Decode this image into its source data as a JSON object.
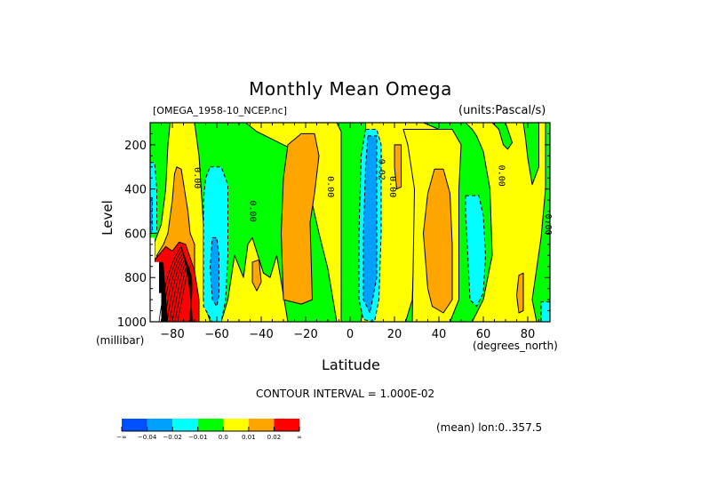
{
  "chart_data": {
    "type": "heatmap",
    "subtype": "filled-contour",
    "title": "Monthly Mean Omega",
    "subtitle_left": "[OMEGA_1958-10_NCEP.nc]",
    "subtitle_right": "(units:Pascal/s)",
    "xlabel": "Latitude",
    "xunits": "(degrees_north)",
    "ylabel": "Level",
    "yunits": "(millibar)",
    "xlim": [
      -90,
      90
    ],
    "ylim": [
      1000,
      100
    ],
    "x_ticks": [
      -80,
      -60,
      -40,
      -20,
      0,
      20,
      40,
      60,
      80
    ],
    "x_tick_labels": [
      "-80",
      "-60",
      "-40",
      "-20",
      "0",
      "20",
      "40",
      "60",
      "80"
    ],
    "y_ticks": [
      200,
      400,
      600,
      800,
      1000
    ],
    "y_tick_labels": [
      "200",
      "400",
      "600",
      "800",
      "1000"
    ],
    "contour_interval_text": "CONTOUR INTERVAL = 1.000E-02",
    "mean_info": "(mean) lon:0..357.5",
    "colorbar": {
      "bins": [
        {
          "color": "#0050ff",
          "range": "-inf to -0.04"
        },
        {
          "color": "#00a0ff",
          "range": "-0.04 to -0.02"
        },
        {
          "color": "#00ffff",
          "range": "-0.02 to -0.01"
        },
        {
          "color": "#00ff00",
          "range": "-0.01 to 0.0"
        },
        {
          "color": "#ffff00",
          "range": "0.0 to 0.01"
        },
        {
          "color": "#ffa500",
          "range": "0.01 to 0.02"
        },
        {
          "color": "#ff0000",
          "range": "0.02 to inf"
        }
      ],
      "labels": [
        "-∞",
        "-0.04",
        "-0.02",
        "-0.01",
        "0.0",
        "0.01",
        "0.02",
        "∞"
      ]
    },
    "contour_labels": [
      {
        "text": "0.00",
        "lat": -70,
        "level": 350
      },
      {
        "text": "0.00",
        "lat": -45,
        "level": 500
      },
      {
        "text": "0.00",
        "lat": -10,
        "level": 390
      },
      {
        "text": "-0.02",
        "lat": 13,
        "level": 300
      },
      {
        "text": "0.00",
        "lat": 18,
        "level": 390
      },
      {
        "text": "0.00",
        "lat": 67,
        "level": 340
      },
      {
        "text": "0.00",
        "lat": 88,
        "level": 560
      }
    ],
    "regions": [
      {
        "name": "background-green",
        "value_bin": 3,
        "pts": [
          [
            -90,
            100
          ],
          [
            90,
            100
          ],
          [
            90,
            1000
          ],
          [
            -90,
            1000
          ]
        ]
      },
      {
        "name": "yellow-sh-polar",
        "value_bin": 4,
        "pts": [
          [
            -81,
            100
          ],
          [
            -70,
            100
          ],
          [
            -68,
            250
          ],
          [
            -66,
            560
          ],
          [
            -66,
            900
          ],
          [
            -63,
            1000
          ],
          [
            -88,
            1000
          ],
          [
            -88,
            640
          ],
          [
            -85,
            560
          ],
          [
            -83,
            400
          ],
          [
            -82,
            200
          ]
        ]
      },
      {
        "name": "yellow-sh-mid",
        "value_bin": 4,
        "pts": [
          [
            -47,
            100
          ],
          [
            -6,
            100
          ],
          [
            -4,
            140
          ],
          [
            -4,
            1000
          ],
          [
            -58,
            1000
          ],
          [
            -55,
            900
          ],
          [
            -52,
            700
          ],
          [
            -48,
            800
          ],
          [
            -46,
            650
          ],
          [
            -44,
            620
          ],
          [
            -39,
            780
          ],
          [
            -36,
            800
          ],
          [
            -33,
            700
          ],
          [
            -28,
            1000
          ],
          [
            -6,
            1000
          ],
          [
            -10,
            760
          ],
          [
            -14,
            600
          ],
          [
            -18,
            420
          ],
          [
            -24,
            230
          ],
          [
            -34,
            180
          ],
          [
            -42,
            140
          ]
        ]
      },
      {
        "name": "yellow-eq",
        "value_bin": 4,
        "pts": [
          [
            7,
            100
          ],
          [
            33,
            100
          ],
          [
            40,
            130
          ],
          [
            33,
            180
          ],
          [
            30,
            350
          ],
          [
            28,
            900
          ],
          [
            25,
            1000
          ],
          [
            5,
            1000
          ],
          [
            6,
            880
          ],
          [
            8,
            600
          ],
          [
            7,
            300
          ]
        ]
      },
      {
        "name": "yellow-nh",
        "value_bin": 4,
        "pts": [
          [
            52,
            100
          ],
          [
            88,
            100
          ],
          [
            88,
            400
          ],
          [
            86,
            620
          ],
          [
            82,
            900
          ],
          [
            84,
            1000
          ],
          [
            55,
            1000
          ],
          [
            60,
            900
          ],
          [
            64,
            700
          ],
          [
            63,
            400
          ],
          [
            60,
            230
          ],
          [
            57,
            160
          ],
          [
            55,
            130
          ]
        ]
      },
      {
        "name": "yellow-nh-mid",
        "value_bin": 4,
        "pts": [
          [
            24,
            130
          ],
          [
            46,
            130
          ],
          [
            50,
            200
          ],
          [
            49,
            400
          ],
          [
            49,
            900
          ],
          [
            45,
            1000
          ],
          [
            28,
            1000
          ],
          [
            29,
            400
          ],
          [
            26,
            200
          ]
        ]
      },
      {
        "name": "green-nh-arm",
        "value_bin": 3,
        "pts": [
          [
            64,
            100
          ],
          [
            70,
            100
          ],
          [
            73,
            190
          ],
          [
            71,
            220
          ],
          [
            69,
            200
          ],
          [
            67,
            130
          ]
        ]
      },
      {
        "name": "green-nh-arm2",
        "value_bin": 3,
        "pts": [
          [
            78,
            100
          ],
          [
            85,
            100
          ],
          [
            85,
            300
          ],
          [
            82,
            380
          ],
          [
            80,
            260
          ],
          [
            79,
            170
          ]
        ]
      },
      {
        "name": "orange-sh-polar",
        "value_bin": 5,
        "pts": [
          [
            -78,
            300
          ],
          [
            -76,
            310
          ],
          [
            -73,
            500
          ],
          [
            -72,
            600
          ],
          [
            -70,
            650
          ],
          [
            -70,
            800
          ],
          [
            -72,
            1000
          ],
          [
            -86,
            1000
          ],
          [
            -87,
            700
          ],
          [
            -84,
            650
          ],
          [
            -82,
            600
          ],
          [
            -80,
            450
          ],
          [
            -79,
            330
          ]
        ]
      },
      {
        "name": "orange-sh-mid",
        "value_bin": 5,
        "pts": [
          [
            -22,
            150
          ],
          [
            -16,
            150
          ],
          [
            -14,
            250
          ],
          [
            -16,
            420
          ],
          [
            -18,
            550
          ],
          [
            -17,
            900
          ],
          [
            -22,
            920
          ],
          [
            -30,
            900
          ],
          [
            -31,
            600
          ],
          [
            -30,
            350
          ],
          [
            -28,
            200
          ]
        ]
      },
      {
        "name": "orange-sh-small",
        "value_bin": 5,
        "pts": [
          [
            -44,
            730
          ],
          [
            -41,
            720
          ],
          [
            -40,
            820
          ],
          [
            -42,
            860
          ],
          [
            -44,
            820
          ]
        ]
      },
      {
        "name": "orange-eq-small",
        "value_bin": 5,
        "pts": [
          [
            20,
            200
          ],
          [
            23,
            200
          ],
          [
            23,
            390
          ],
          [
            21,
            400
          ],
          [
            20,
            300
          ]
        ]
      },
      {
        "name": "orange-nh-mid",
        "value_bin": 5,
        "pts": [
          [
            38,
            310
          ],
          [
            42,
            310
          ],
          [
            45,
            420
          ],
          [
            46,
            650
          ],
          [
            46,
            900
          ],
          [
            42,
            960
          ],
          [
            37,
            930
          ],
          [
            35,
            850
          ],
          [
            33,
            600
          ],
          [
            35,
            420
          ]
        ]
      },
      {
        "name": "orange-nh-small",
        "value_bin": 5,
        "pts": [
          [
            76,
            790
          ],
          [
            78,
            780
          ],
          [
            78,
            950
          ],
          [
            76,
            960
          ],
          [
            75,
            880
          ]
        ]
      },
      {
        "name": "red-sh-polar",
        "value_bin": 6,
        "pts": [
          [
            -77,
            640
          ],
          [
            -74,
            650
          ],
          [
            -70,
            770
          ],
          [
            -68,
            900
          ],
          [
            -68,
            1000
          ],
          [
            -82,
            1000
          ],
          [
            -86,
            940
          ],
          [
            -88,
            720
          ],
          [
            -83,
            660
          ],
          [
            -80,
            680
          ]
        ]
      },
      {
        "name": "cyan-sh",
        "value_bin": 2,
        "pts": [
          [
            -63,
            300
          ],
          [
            -58,
            300
          ],
          [
            -55,
            380
          ],
          [
            -55,
            700
          ],
          [
            -56,
            900
          ],
          [
            -58,
            1000
          ],
          [
            -62,
            1000
          ],
          [
            -66,
            930
          ],
          [
            -66,
            700
          ],
          [
            -66,
            450
          ],
          [
            -65,
            350
          ]
        ]
      },
      {
        "name": "blue-sh",
        "value_bin": 1,
        "pts": [
          [
            -62,
            620
          ],
          [
            -60,
            620
          ],
          [
            -59,
            700
          ],
          [
            -59,
            880
          ],
          [
            -60,
            930
          ],
          [
            -62,
            900
          ],
          [
            -63,
            750
          ]
        ]
      },
      {
        "name": "cyan-sh-edge",
        "value_bin": 2,
        "pts": [
          [
            -90,
            280
          ],
          [
            -88,
            280
          ],
          [
            -87,
            400
          ],
          [
            -87,
            600
          ],
          [
            -90,
            600
          ]
        ]
      },
      {
        "name": "blue-sh-edge",
        "value_bin": 1,
        "pts": [
          [
            -90,
            440
          ],
          [
            -89,
            440
          ],
          [
            -89,
            600
          ],
          [
            -90,
            600
          ]
        ]
      },
      {
        "name": "cyan-eq",
        "value_bin": 2,
        "pts": [
          [
            7,
            130
          ],
          [
            12,
            130
          ],
          [
            14,
            200
          ],
          [
            14,
            600
          ],
          [
            13,
            900
          ],
          [
            11,
            1000
          ],
          [
            6,
            990
          ],
          [
            4,
            900
          ],
          [
            4,
            600
          ],
          [
            5,
            250
          ]
        ]
      },
      {
        "name": "blue-eq",
        "value_bin": 1,
        "pts": [
          [
            8,
            160
          ],
          [
            12,
            160
          ],
          [
            12,
            600
          ],
          [
            12,
            800
          ],
          [
            9,
            960
          ],
          [
            6,
            900
          ],
          [
            6,
            600
          ],
          [
            7,
            300
          ]
        ]
      },
      {
        "name": "cyan-nh",
        "value_bin": 2,
        "pts": [
          [
            52,
            430
          ],
          [
            58,
            430
          ],
          [
            60,
            520
          ],
          [
            61,
            700
          ],
          [
            60,
            870
          ],
          [
            57,
            930
          ],
          [
            54,
            900
          ],
          [
            53,
            700
          ],
          [
            52,
            500
          ]
        ]
      },
      {
        "name": "cyan-nh-edge",
        "value_bin": 2,
        "pts": [
          [
            90,
            910
          ],
          [
            86,
            910
          ],
          [
            86,
            1000
          ],
          [
            90,
            1000
          ]
        ]
      },
      {
        "name": "white-missing",
        "value_bin": -1,
        "pts": [
          [
            -90,
            620
          ],
          [
            -88,
            620
          ],
          [
            -88,
            730
          ],
          [
            -86,
            730
          ],
          [
            -86,
            870
          ],
          [
            -85,
            870
          ],
          [
            -85,
            1000
          ],
          [
            -90,
            1000
          ]
        ]
      },
      {
        "name": "black-missing-edge",
        "value_bin": -2,
        "pts": [
          [
            -86,
            730
          ],
          [
            -84,
            730
          ],
          [
            -83,
            870
          ],
          [
            -82,
            1000
          ],
          [
            -85,
            1000
          ],
          [
            -85,
            870
          ],
          [
            -86,
            870
          ]
        ]
      }
    ]
  }
}
